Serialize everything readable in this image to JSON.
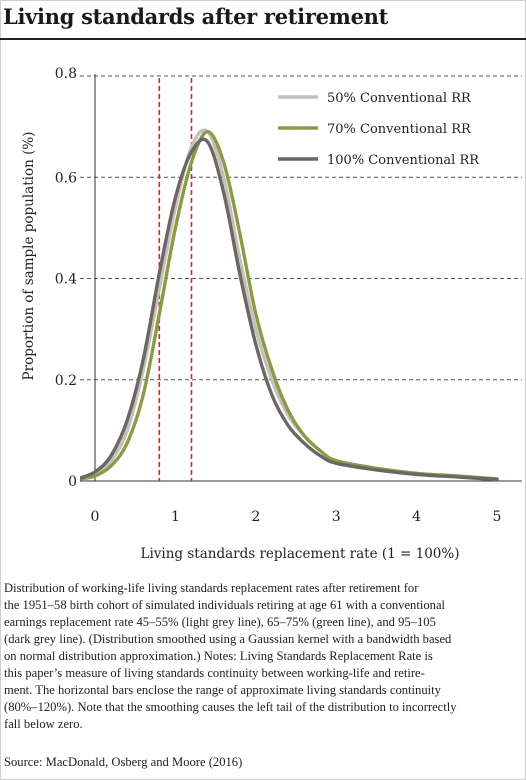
{
  "header": {
    "title": "Living standards after retirement"
  },
  "chart_data": {
    "type": "line",
    "xlabel": "Living standards replacement rate (1 = 100%)",
    "ylabel": "Proportion of sample population (%)",
    "xlim": [
      0,
      5
    ],
    "ylim": [
      0,
      0.8
    ],
    "x_ticks": [
      "0",
      "1",
      "2",
      "3",
      "4",
      "5"
    ],
    "y_ticks": [
      "0",
      "0.2",
      "0.4",
      "0.6",
      "0.8"
    ],
    "grid": "horizontal dashed",
    "legend_position": "top-right",
    "reference_lines": {
      "x": [
        0.8,
        1.2
      ],
      "color": "#cc2b2b",
      "style": "dashed"
    },
    "series": [
      {
        "name": "50% Conventional RR",
        "color": "#c4c1bd",
        "x": [
          -0.2,
          0,
          0.2,
          0.4,
          0.6,
          0.8,
          1.0,
          1.2,
          1.4,
          1.6,
          1.8,
          2.0,
          2.2,
          2.4,
          2.6,
          2.8,
          3.0,
          3.5,
          4.0,
          4.5,
          5.0
        ],
        "y": [
          0.005,
          0.015,
          0.04,
          0.1,
          0.22,
          0.38,
          0.54,
          0.66,
          0.69,
          0.6,
          0.44,
          0.3,
          0.2,
          0.13,
          0.09,
          0.06,
          0.04,
          0.025,
          0.015,
          0.01,
          0.004
        ]
      },
      {
        "name": "70% Conventional RR",
        "color": "#8c9a48",
        "x": [
          -0.2,
          0,
          0.2,
          0.4,
          0.6,
          0.8,
          1.0,
          1.2,
          1.4,
          1.6,
          1.8,
          2.0,
          2.2,
          2.4,
          2.6,
          2.8,
          3.0,
          3.5,
          4.0,
          4.5,
          5.0
        ],
        "y": [
          0.004,
          0.01,
          0.03,
          0.075,
          0.17,
          0.33,
          0.5,
          0.63,
          0.69,
          0.63,
          0.49,
          0.33,
          0.22,
          0.14,
          0.09,
          0.06,
          0.04,
          0.025,
          0.015,
          0.01,
          0.004
        ]
      },
      {
        "name": "100% Conventional RR",
        "color": "#6c6763",
        "x": [
          -0.2,
          0,
          0.2,
          0.4,
          0.6,
          0.8,
          1.0,
          1.2,
          1.4,
          1.6,
          1.8,
          2.0,
          2.2,
          2.4,
          2.6,
          2.8,
          3.0,
          3.5,
          4.0,
          4.5,
          5.0
        ],
        "y": [
          0.005,
          0.018,
          0.05,
          0.12,
          0.24,
          0.41,
          0.56,
          0.65,
          0.67,
          0.57,
          0.41,
          0.27,
          0.17,
          0.11,
          0.075,
          0.05,
          0.035,
          0.022,
          0.013,
          0.008,
          0.003
        ]
      }
    ]
  },
  "caption": {
    "lines": [
      "Distribution of working-life living standards replacement rates after retirement for",
      "the 1951–58 birth cohort of simulated individuals retiring at age 61 with a conventional",
      "earnings replacement rate 45–55% (light grey line), 65–75% (green line), and 95–105",
      "(dark grey line). (Distribution smoothed using a Gaussian kernel with a bandwidth based",
      "on normal distribution approximation.) Notes: Living Standards Replacement Rate is",
      "this paper’s measure of living standards continuity between working-life and retire-",
      "ment. The horizontal bars enclose the range of approximate living standards continuity",
      "(80%–120%). Note that the smoothing causes the left tail of the distribution to incorrectly",
      "fall below zero."
    ]
  },
  "source": "Source: MacDonald, Osberg and Moore (2016)"
}
